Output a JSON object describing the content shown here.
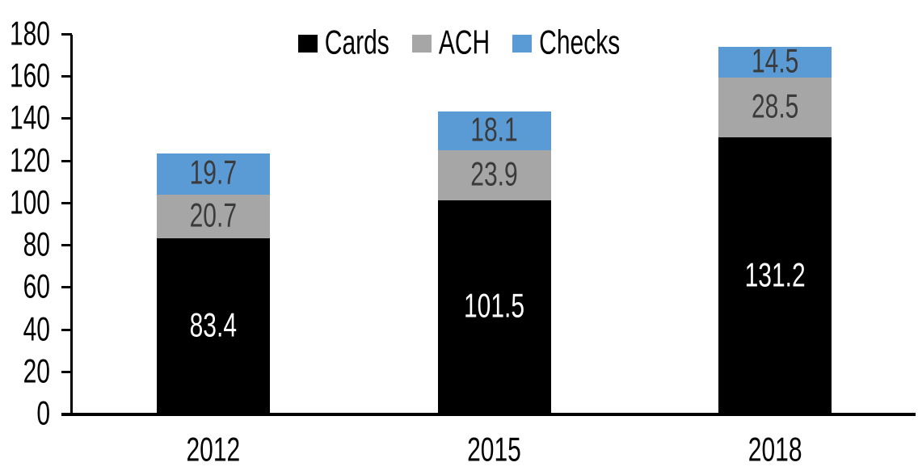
{
  "chart_data": {
    "type": "bar",
    "stacked": true,
    "title": "",
    "categories": [
      "2012",
      "2015",
      "2018"
    ],
    "series": [
      {
        "name": "Cards",
        "color": "#000000",
        "label_color": "#FFFFFF",
        "values": [
          83.4,
          101.5,
          131.2
        ]
      },
      {
        "name": "ACH",
        "color": "#A6A6A6",
        "label_color": "#3B3B3B",
        "values": [
          20.7,
          23.9,
          28.5
        ]
      },
      {
        "name": "Checks",
        "color": "#5B9BD5",
        "label_color": "#3B3B3B",
        "values": [
          19.7,
          18.1,
          14.5
        ]
      }
    ],
    "xlabel": "",
    "ylabel": "",
    "ylim": [
      0,
      180
    ],
    "yticks": [
      0,
      20,
      40,
      60,
      80,
      100,
      120,
      140,
      160,
      180
    ],
    "legend_position": "top",
    "legend_order": [
      "Cards",
      "ACH",
      "Checks"
    ],
    "grid": false,
    "axis_color": "#000000",
    "background_color": "#FFFFFF",
    "value_label_decimals": 1
  }
}
